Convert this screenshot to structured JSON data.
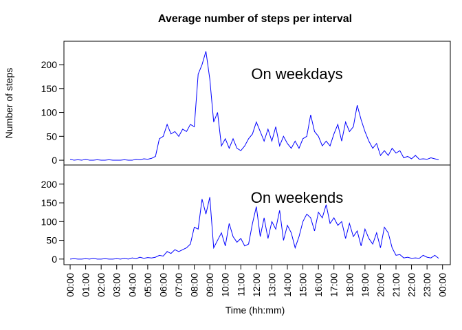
{
  "chart_data": [
    {
      "type": "line",
      "title": "Average number of steps per interval",
      "ylabel": "Number of steps",
      "annotation": "On weekdays",
      "xlim": [
        -0.4,
        24.5
      ],
      "ylim": [
        -10,
        249
      ],
      "yticks": [
        0,
        50,
        100,
        150,
        200
      ],
      "x": [
        0,
        0.25,
        0.5,
        0.75,
        1,
        1.25,
        1.5,
        1.75,
        2,
        2.25,
        2.5,
        2.75,
        3,
        3.25,
        3.5,
        3.75,
        4,
        4.25,
        4.5,
        4.75,
        5,
        5.25,
        5.5,
        5.75,
        6,
        6.25,
        6.5,
        6.75,
        7,
        7.25,
        7.5,
        7.75,
        8,
        8.25,
        8.5,
        8.75,
        9,
        9.25,
        9.5,
        9.75,
        10,
        10.25,
        10.5,
        10.75,
        11,
        11.25,
        11.5,
        11.75,
        12,
        12.25,
        12.5,
        12.75,
        13,
        13.25,
        13.5,
        13.75,
        14,
        14.25,
        14.5,
        14.75,
        15,
        15.25,
        15.5,
        15.75,
        16,
        16.25,
        16.5,
        16.75,
        17,
        17.25,
        17.5,
        17.75,
        18,
        18.25,
        18.5,
        18.75,
        19,
        19.25,
        19.5,
        19.75,
        20,
        20.25,
        20.5,
        20.75,
        21,
        21.25,
        21.5,
        21.75,
        22,
        22.25,
        22.5,
        22.75,
        23,
        23.25,
        23.5,
        23.75
      ],
      "series": [
        {
          "name": "On weekdays",
          "color": "#0000ff",
          "values": [
            2,
            0,
            1,
            0,
            2,
            0,
            0,
            1,
            0,
            0,
            1,
            0,
            0,
            0,
            1,
            0,
            0,
            2,
            1,
            3,
            2,
            4,
            8,
            45,
            50,
            75,
            55,
            60,
            50,
            65,
            60,
            75,
            70,
            180,
            200,
            228,
            170,
            80,
            100,
            30,
            45,
            25,
            45,
            25,
            20,
            30,
            45,
            55,
            80,
            60,
            40,
            65,
            40,
            70,
            30,
            50,
            35,
            25,
            40,
            25,
            45,
            50,
            95,
            60,
            50,
            30,
            40,
            30,
            55,
            75,
            40,
            80,
            60,
            70,
            115,
            85,
            60,
            40,
            25,
            35,
            10,
            20,
            10,
            25,
            15,
            20,
            5,
            8,
            3,
            10,
            2,
            3,
            2,
            5,
            3,
            1
          ]
        }
      ]
    },
    {
      "type": "line",
      "annotation": "On weekends",
      "xlabel": "Time (hh:mm)",
      "xlim": [
        -0.4,
        24.5
      ],
      "ylim": [
        -15,
        251
      ],
      "yticks": [
        0,
        50,
        100,
        150,
        200
      ],
      "xticks": [
        {
          "value": 0,
          "label": "00:00"
        },
        {
          "value": 1,
          "label": "01:00"
        },
        {
          "value": 2,
          "label": "02:00"
        },
        {
          "value": 3,
          "label": "03:00"
        },
        {
          "value": 4,
          "label": "04:00"
        },
        {
          "value": 5,
          "label": "05:00"
        },
        {
          "value": 6,
          "label": "06:00"
        },
        {
          "value": 7,
          "label": "07:00"
        },
        {
          "value": 8,
          "label": "08:00"
        },
        {
          "value": 9,
          "label": "09:00"
        },
        {
          "value": 10,
          "label": "10:00"
        },
        {
          "value": 11,
          "label": "11:00"
        },
        {
          "value": 12,
          "label": "12:00"
        },
        {
          "value": 13,
          "label": "13:00"
        },
        {
          "value": 14,
          "label": "14:00"
        },
        {
          "value": 15,
          "label": "15:00"
        },
        {
          "value": 16,
          "label": "16:00"
        },
        {
          "value": 17,
          "label": "17:00"
        },
        {
          "value": 18,
          "label": "18:00"
        },
        {
          "value": 19,
          "label": "19:00"
        },
        {
          "value": 20,
          "label": "20:00"
        },
        {
          "value": 21,
          "label": "21:00"
        },
        {
          "value": 22,
          "label": "22:00"
        },
        {
          "value": 23,
          "label": "23:00"
        },
        {
          "value": 24,
          "label": "00:00"
        }
      ],
      "x": [
        0,
        0.25,
        0.5,
        0.75,
        1,
        1.25,
        1.5,
        1.75,
        2,
        2.25,
        2.5,
        2.75,
        3,
        3.25,
        3.5,
        3.75,
        4,
        4.25,
        4.5,
        4.75,
        5,
        5.25,
        5.5,
        5.75,
        6,
        6.25,
        6.5,
        6.75,
        7,
        7.25,
        7.5,
        7.75,
        8,
        8.25,
        8.5,
        8.75,
        9,
        9.25,
        9.5,
        9.75,
        10,
        10.25,
        10.5,
        10.75,
        11,
        11.25,
        11.5,
        11.75,
        12,
        12.25,
        12.5,
        12.75,
        13,
        13.25,
        13.5,
        13.75,
        14,
        14.25,
        14.5,
        14.75,
        15,
        15.25,
        15.5,
        15.75,
        16,
        16.25,
        16.5,
        16.75,
        17,
        17.25,
        17.5,
        17.75,
        18,
        18.25,
        18.5,
        18.75,
        19,
        19.25,
        19.5,
        19.75,
        20,
        20.25,
        20.5,
        20.75,
        21,
        21.25,
        21.5,
        21.75,
        22,
        22.25,
        22.5,
        22.75,
        23,
        23.25,
        23.5,
        23.75
      ],
      "series": [
        {
          "name": "On weekends",
          "color": "#0000ff",
          "values": [
            0,
            1,
            0,
            0,
            1,
            0,
            2,
            0,
            0,
            1,
            0,
            0,
            1,
            0,
            2,
            0,
            3,
            1,
            5,
            2,
            4,
            3,
            5,
            10,
            8,
            20,
            15,
            25,
            20,
            25,
            30,
            40,
            85,
            80,
            160,
            120,
            165,
            30,
            50,
            70,
            35,
            95,
            60,
            45,
            55,
            35,
            40,
            95,
            140,
            60,
            110,
            55,
            100,
            80,
            130,
            50,
            90,
            70,
            30,
            60,
            100,
            120,
            110,
            75,
            125,
            110,
            145,
            95,
            110,
            90,
            100,
            55,
            95,
            60,
            75,
            35,
            80,
            55,
            40,
            70,
            30,
            85,
            70,
            30,
            10,
            12,
            3,
            5,
            2,
            3,
            2,
            10,
            5,
            3,
            10,
            2
          ]
        }
      ]
    }
  ]
}
